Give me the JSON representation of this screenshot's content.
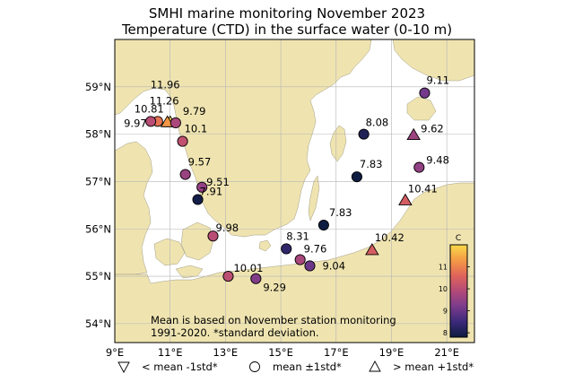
{
  "title": {
    "line1": "SMHI marine monitoring November 2023",
    "line2": "Temperature (CTD) in the surface water (0-10 m)"
  },
  "map_data": {
    "lon_ticks": [
      "9°E",
      "11°E",
      "13°E",
      "15°E",
      "17°E",
      "19°E",
      "21°E"
    ],
    "lat_ticks": [
      "59°N",
      "58°N",
      "57°N",
      "56°N",
      "55°N",
      "54°N"
    ],
    "lon_range": [
      9,
      22
    ],
    "lat_range": [
      53.6,
      60.0
    ],
    "stations": [
      {
        "label": "11.96",
        "value": 11.96,
        "lon": 11.0,
        "lat": 58.25,
        "marker": "triangle-up"
      },
      {
        "label": "11.26",
        "value": 11.26,
        "lon": 10.9,
        "lat": 58.25,
        "marker": "triangle-up"
      },
      {
        "label": "10.81",
        "value": 10.81,
        "lon": 10.55,
        "lat": 58.27,
        "marker": "circle"
      },
      {
        "label": "9.97",
        "value": 9.97,
        "lon": 10.3,
        "lat": 58.27,
        "marker": "circle"
      },
      {
        "label": "9.79",
        "value": 9.79,
        "lon": 11.2,
        "lat": 58.24,
        "marker": "circle"
      },
      {
        "label": "10.1",
        "value": 10.1,
        "lon": 11.45,
        "lat": 57.85,
        "marker": "circle"
      },
      {
        "label": "9.57",
        "value": 9.57,
        "lon": 11.55,
        "lat": 57.15,
        "marker": "circle"
      },
      {
        "label": "9.51",
        "value": 9.51,
        "lon": 12.15,
        "lat": 56.88,
        "marker": "circle"
      },
      {
        "label": "7.91",
        "value": 7.91,
        "lon": 12.0,
        "lat": 56.62,
        "marker": "circle"
      },
      {
        "label": "9.98",
        "value": 9.98,
        "lon": 12.55,
        "lat": 55.85,
        "marker": "circle"
      },
      {
        "label": "10.01",
        "value": 10.01,
        "lon": 13.1,
        "lat": 55.0,
        "marker": "circle"
      },
      {
        "label": "9.29",
        "value": 9.29,
        "lon": 14.1,
        "lat": 54.95,
        "marker": "circle"
      },
      {
        "label": "8.31",
        "value": 8.31,
        "lon": 15.2,
        "lat": 55.58,
        "marker": "circle"
      },
      {
        "label": "9.76",
        "value": 9.76,
        "lon": 15.7,
        "lat": 55.35,
        "marker": "circle"
      },
      {
        "label": "9.04",
        "value": 9.04,
        "lon": 16.05,
        "lat": 55.22,
        "marker": "circle"
      },
      {
        "label": "7.83",
        "value": 7.83,
        "lon": 16.55,
        "lat": 56.08,
        "marker": "circle"
      },
      {
        "label": "7.83",
        "value": 7.83,
        "lon": 17.75,
        "lat": 57.1,
        "marker": "circle"
      },
      {
        "label": "8.08",
        "value": 8.08,
        "lon": 18.0,
        "lat": 58.0,
        "marker": "circle"
      },
      {
        "label": "9.62",
        "value": 9.62,
        "lon": 19.8,
        "lat": 57.98,
        "marker": "triangle-up"
      },
      {
        "label": "9.11",
        "value": 9.11,
        "lon": 20.2,
        "lat": 58.87,
        "marker": "circle"
      },
      {
        "label": "9.48",
        "value": 9.48,
        "lon": 20.0,
        "lat": 57.3,
        "marker": "circle"
      },
      {
        "label": "10.41",
        "value": 10.41,
        "lon": 19.5,
        "lat": 56.6,
        "marker": "triangle-up"
      },
      {
        "label": "10.42",
        "value": 10.42,
        "lon": 18.3,
        "lat": 55.55,
        "marker": "triangle-up"
      }
    ],
    "colorbar": {
      "label": "C",
      "min": 7.8,
      "max": 12.0,
      "ticks": [
        "8",
        "9",
        "10",
        "11"
      ],
      "tick_values": [
        8,
        9,
        10,
        11
      ],
      "colors": [
        "#0d1b3e",
        "#3b2a7a",
        "#7b3b8c",
        "#b34a78",
        "#e0645a",
        "#f49a45",
        "#f9d94a"
      ]
    },
    "note": {
      "line1": "Mean is based on November station monitoring",
      "line2": "1991-2020. *standard deviation."
    },
    "colors": {
      "land": "#efe4b0",
      "sea": "#ffffff",
      "grid": "#b4b4b4"
    }
  },
  "legend": {
    "items": [
      {
        "symbol": "triangle-down",
        "label": "< mean -1std*"
      },
      {
        "symbol": "circle",
        "label": "mean ±1std*"
      },
      {
        "symbol": "triangle-up",
        "label": "> mean +1std*"
      }
    ]
  }
}
